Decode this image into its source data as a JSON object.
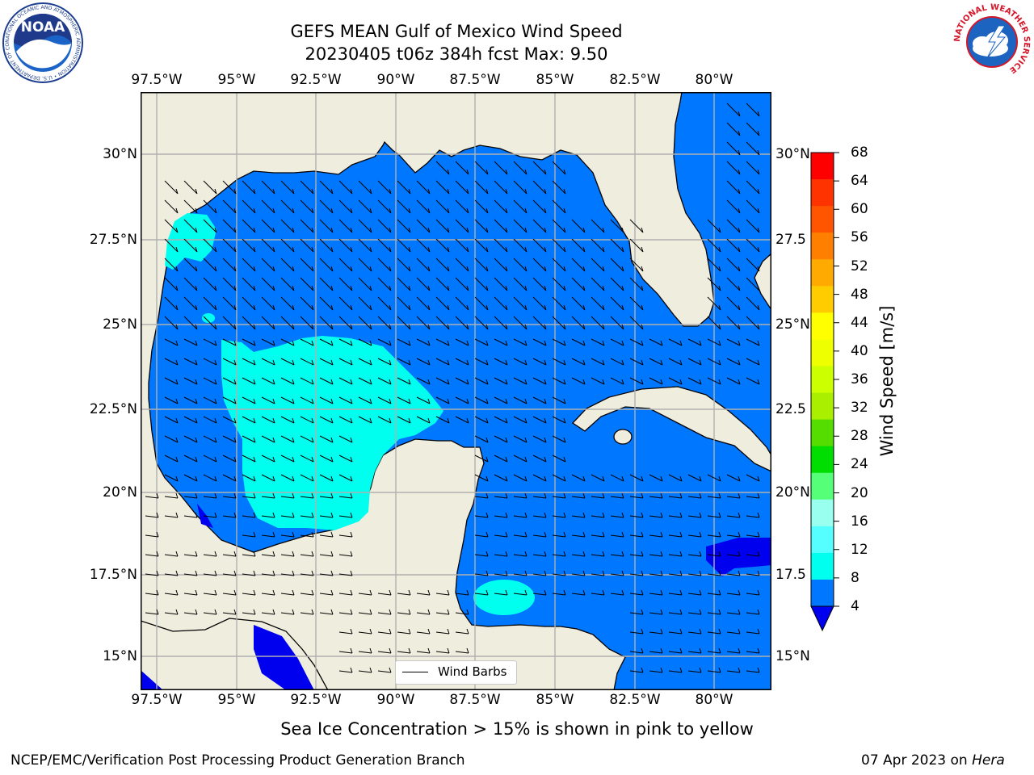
{
  "title": {
    "line1": "GEFS MEAN Gulf of Mexico Wind Speed",
    "line2": "20230405 t06z 384h fcst   Max: 9.50"
  },
  "longitudes": [
    "97.5°W",
    "95°W",
    "92.5°W",
    "90°W",
    "87.5°W",
    "85°W",
    "82.5°W",
    "80°W"
  ],
  "latitudes_left": [
    "30°N",
    "27.5°N",
    "25°N",
    "22.5°N",
    "20°N",
    "17.5°N",
    "15°N"
  ],
  "latitudes_right": [
    "30°N",
    "27.5",
    "25°N",
    "22.5",
    "20°N",
    "17.5",
    "15°N"
  ],
  "colorbar": {
    "label": "Wind Speed [m/s]",
    "ticks": [
      "68",
      "64",
      "60",
      "56",
      "52",
      "48",
      "44",
      "40",
      "36",
      "32",
      "28",
      "24",
      "20",
      "16",
      "12",
      "8",
      "4"
    ],
    "colors": [
      "#ff0000",
      "#ff3300",
      "#ff5500",
      "#ff8000",
      "#ffaa00",
      "#ffcc00",
      "#ffff00",
      "#eeff00",
      "#ccff00",
      "#aaee00",
      "#55dd00",
      "#00dd00",
      "#55ff77",
      "#99ffee",
      "#55ffff",
      "#00ffee",
      "#0077ff",
      "#0000ee"
    ]
  },
  "legend": {
    "label": "Wind Barbs"
  },
  "caption": "Sea Ice Concentration > 15% is shown in pink to yellow",
  "footer": {
    "left": "NCEP/EMC/Verification Post Processing Product Generation Branch",
    "right_prefix": "07 Apr 2023 on ",
    "right_machine": "Hera"
  },
  "logos": {
    "noaa": {
      "name": "NOAA",
      "ring_text": "NATIONAL OCEANIC AND ATMOSPHERIC ADMINISTRATION • U.S. DEPARTMENT OF COMMERCE"
    },
    "nws": {
      "ring_text": "NATIONAL WEATHER SERVICE"
    }
  },
  "map_colors": {
    "land": "#efedde",
    "wind_4_8": "#0077ff",
    "wind_8_12": "#00ffee",
    "wind_lt_4": "#0000ee",
    "grid": "#b0b0b0"
  }
}
